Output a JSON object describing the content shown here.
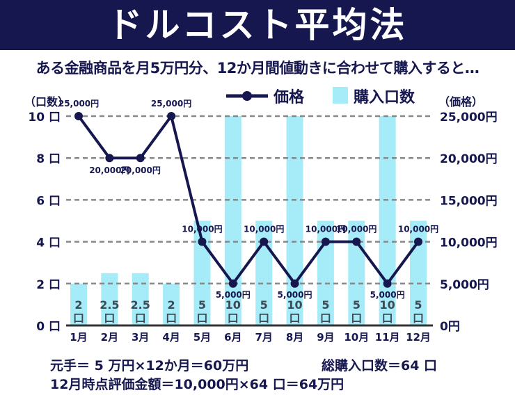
{
  "title": "ドルコスト平均法",
  "subtitle": "ある金融商品を月5万円分、12か月間値動きに合わせて購入すると…",
  "colors": {
    "navy": "#16174f",
    "bar": "#a6ecf8",
    "grid": "#888888"
  },
  "chart_data": {
    "type": "bar+line",
    "categories": [
      "1月",
      "2月",
      "3月",
      "4月",
      "5月",
      "6月",
      "7月",
      "8月",
      "9月",
      "10月",
      "11月",
      "12月"
    ],
    "series": [
      {
        "name": "購入口数",
        "type": "bar",
        "axis": "left",
        "values": [
          2,
          2.5,
          2.5,
          2,
          5,
          10,
          5,
          10,
          5,
          5,
          10,
          5
        ],
        "data_labels": [
          "2",
          "2.5",
          "2.5",
          "2",
          "5",
          "10",
          "5",
          "10",
          "5",
          "5",
          "10",
          "5"
        ],
        "label_unit": "口"
      },
      {
        "name": "価格",
        "type": "line",
        "axis": "right",
        "values": [
          25000,
          20000,
          20000,
          25000,
          10000,
          5000,
          10000,
          5000,
          10000,
          10000,
          5000,
          10000
        ],
        "data_labels": [
          "25,000円",
          "20,000円",
          "20,000円",
          "25,000円",
          "10,000円",
          "5,000円",
          "10,000円",
          "5,000円",
          "10,000円",
          "10,000円",
          "5,000円",
          "10,000円"
        ]
      }
    ],
    "left_axis": {
      "label": "（口数）",
      "ylim": [
        0,
        10
      ],
      "ticks": [
        "0 口",
        "2 口",
        "4 口",
        "6 口",
        "8 口",
        "10 口"
      ]
    },
    "right_axis": {
      "label": "（価格）",
      "ylim": [
        0,
        25000
      ],
      "ticks": [
        "0円",
        "5,000円",
        "10,000円",
        "15,000円",
        "20,000円",
        "25,000円"
      ]
    },
    "grid": "dashed horizontal",
    "legend": {
      "position": "top",
      "items": [
        "価格",
        "購入口数"
      ]
    }
  },
  "footer": {
    "line1": "元手＝ 5 万円×12か月＝60万円",
    "line1b": "総購入口数＝64 口",
    "line2": "12月時点評価金額＝10,000円×64 口＝64万円"
  }
}
